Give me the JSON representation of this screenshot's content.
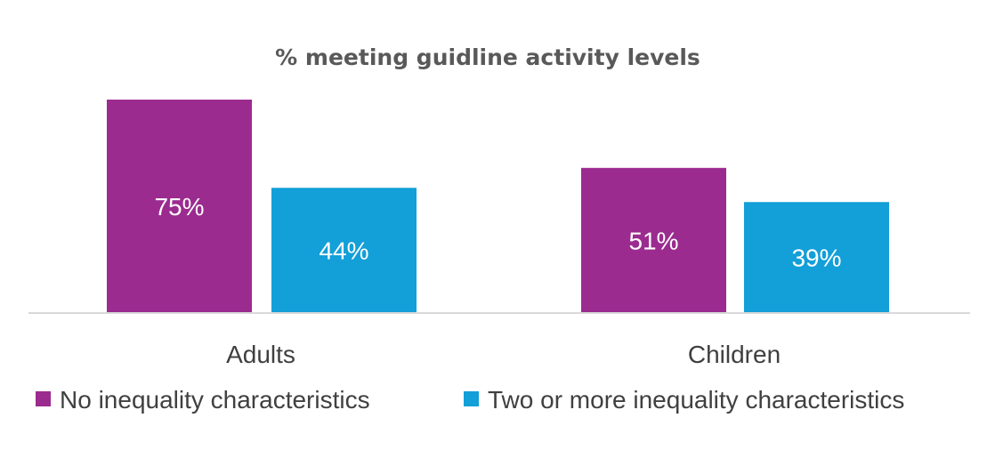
{
  "chart_data": {
    "type": "bar",
    "title": "% meeting guidline activity levels",
    "categories": [
      "Adults",
      "Children"
    ],
    "series": [
      {
        "name": "No inequality characteristics",
        "values": [
          75,
          51
        ],
        "labels": [
          "75%",
          "51%"
        ],
        "color": "#9b2b8f"
      },
      {
        "name": "Two or more inequality characteristics",
        "values": [
          44,
          39
        ],
        "labels": [
          "44%",
          "39%"
        ],
        "color": "#139fd8"
      }
    ],
    "ylim": [
      0,
      75
    ],
    "grid": false,
    "legend": "bottom",
    "axis_color": "#d9d9d9"
  }
}
